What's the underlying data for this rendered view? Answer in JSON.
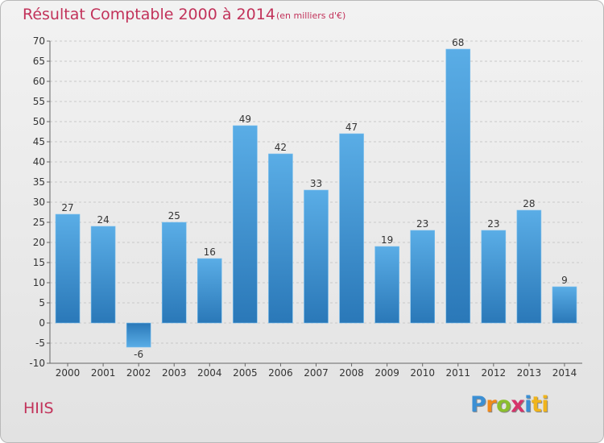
{
  "chart_data": {
    "type": "bar",
    "title": "Résultat Comptable 2000 à 2014",
    "subtitle": "(en milliers d'€)",
    "categories": [
      "2000",
      "2001",
      "2002",
      "2003",
      "2004",
      "2005",
      "2006",
      "2007",
      "2008",
      "2009",
      "2010",
      "2011",
      "2012",
      "2013",
      "2014"
    ],
    "values": [
      27,
      24,
      -6,
      25,
      16,
      49,
      42,
      33,
      47,
      19,
      23,
      68,
      23,
      28,
      9
    ],
    "ylim": [
      -10,
      70
    ],
    "yticks": [
      -10,
      -5,
      0,
      5,
      10,
      15,
      20,
      25,
      30,
      35,
      40,
      45,
      50,
      55,
      60,
      65,
      70
    ],
    "grid": true,
    "xlabel": "",
    "ylabel": ""
  },
  "footer": {
    "place": "HIIS"
  },
  "brand": {
    "letters": [
      "P",
      "r",
      "o",
      "x",
      "i",
      "ti"
    ]
  },
  "colors": {
    "bar_light": "#5aade6",
    "bar_dark": "#2a78b8",
    "title": "#c2325a"
  }
}
